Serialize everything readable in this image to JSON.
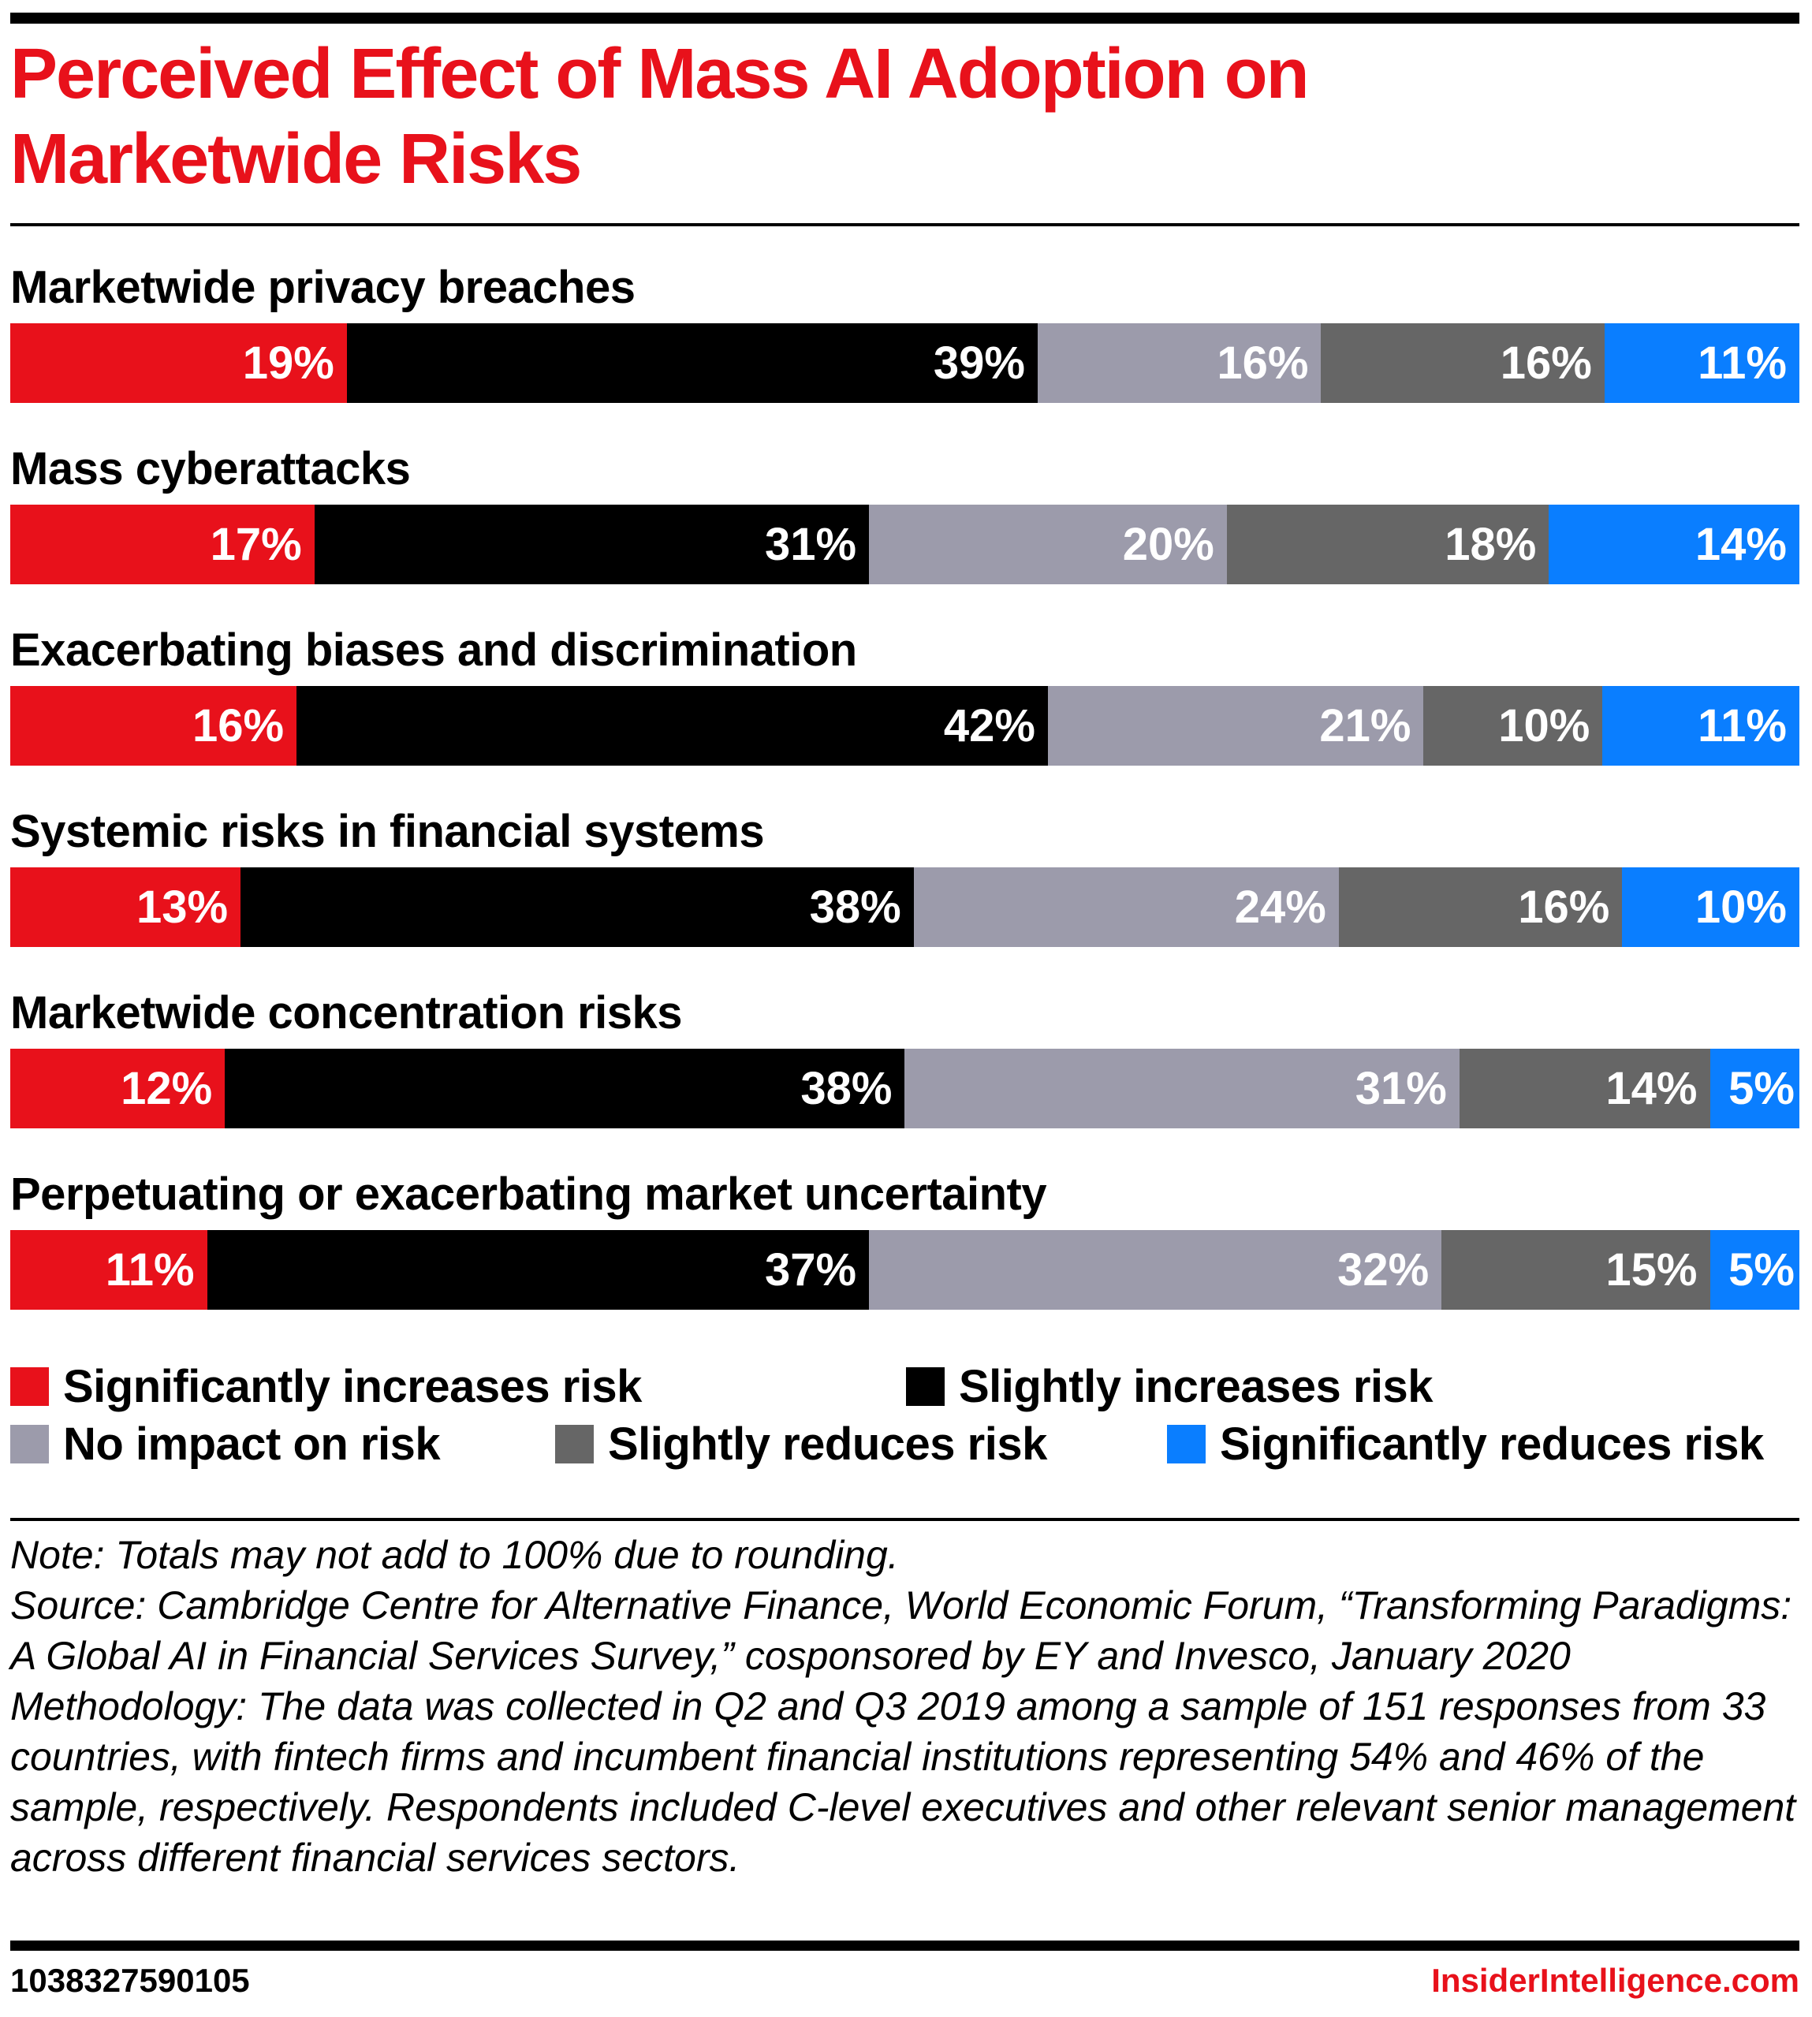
{
  "title": "Perceived Effect of Mass AI Adoption on Marketwide Risks",
  "colors": {
    "sig_inc": "#E8111B",
    "sli_inc": "#000000",
    "none": "#9C9BAB",
    "sli_red": "#666666",
    "sig_red": "#0A7EFF",
    "brand": "#E8111B"
  },
  "chart_data": {
    "type": "bar",
    "orientation": "horizontal",
    "stacked": true,
    "title": "Perceived Effect of Mass AI Adoption on Marketwide Risks",
    "categories": [
      "Marketwide privacy breaches",
      "Mass cyberattacks",
      "Exacerbating biases and discrimination",
      "Systemic risks in financial systems",
      "Marketwide concentration risks",
      "Perpetuating or exacerbating market uncertainty"
    ],
    "series": [
      {
        "name": "Significantly increases risk",
        "color": "#E8111B",
        "values": [
          19,
          17,
          16,
          13,
          12,
          11
        ]
      },
      {
        "name": "Slightly increases risk",
        "color": "#000000",
        "values": [
          39,
          31,
          42,
          38,
          38,
          37
        ]
      },
      {
        "name": "No impact on risk",
        "color": "#9C9BAB",
        "values": [
          16,
          20,
          21,
          24,
          31,
          32
        ]
      },
      {
        "name": "Slightly reduces risk",
        "color": "#666666",
        "values": [
          16,
          18,
          10,
          16,
          14,
          15
        ]
      },
      {
        "name": "Significantly reduces risk",
        "color": "#0A7EFF",
        "values": [
          11,
          14,
          11,
          10,
          5,
          5
        ]
      }
    ],
    "unit": "%",
    "legend": "bottom",
    "grid": false
  },
  "notes": {
    "note": "Note: Totals may not add to 100% due to rounding.",
    "source": "Source: Cambridge Centre for Alternative Finance, World Economic Forum, “Transforming Paradigms: A Global AI in Financial Services Survey,” cosponsored by EY and Invesco, January 2020",
    "methodology": "Methodology: The data was collected in Q2 and Q3 2019 among a sample of 151 responses from 33 countries, with fintech firms and incumbent financial institutions representing 54% and 46% of the sample, respectively. Respondents included C-level executives and other relevant senior management across different financial services sectors."
  },
  "footer": {
    "chart_id": "1038327590105",
    "brand": "InsiderIntelligence.com"
  }
}
